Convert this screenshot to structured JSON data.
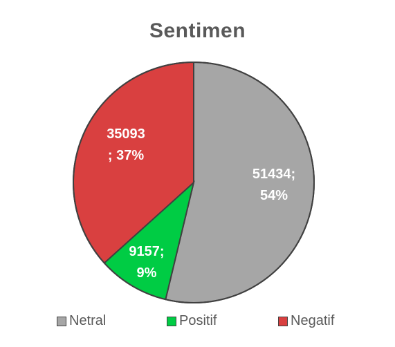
{
  "chart_data": {
    "type": "pie",
    "title": "Sentimen",
    "slices": [
      {
        "name": "Netral",
        "value": 51434,
        "percent": 54,
        "label_lines": [
          "51434;",
          "54%"
        ],
        "color": "#a6a6a6"
      },
      {
        "name": "Positif",
        "value": 9157,
        "percent": 9,
        "label_lines": [
          "9157;",
          "9%"
        ],
        "color": "#00cc44"
      },
      {
        "name": "Negatif",
        "value": 35093,
        "percent": 37,
        "label_lines": [
          "35093",
          "; 37%"
        ],
        "color": "#d94040"
      }
    ],
    "legend_position": "bottom",
    "legend": [
      "Netral",
      "Positif",
      "Negatif"
    ],
    "border_color": "#404040"
  }
}
